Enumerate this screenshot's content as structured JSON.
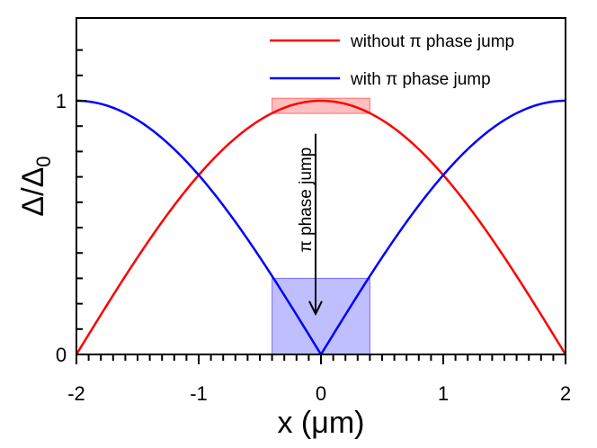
{
  "chart_data": {
    "type": "line",
    "title": "",
    "xlabel": "x (μm)",
    "ylabel": "Δ/Δ",
    "ylabel_subscript": "0",
    "xlim": [
      -2,
      2
    ],
    "ylim": [
      0,
      1.3
    ],
    "x_ticks": [
      -2,
      -1,
      0,
      1,
      2
    ],
    "x_tick_labels": [
      "-2",
      "-1",
      "0",
      "1",
      "2"
    ],
    "y_ticks": [
      0,
      1
    ],
    "y_tick_labels": [
      "0",
      "1"
    ],
    "grid": false,
    "legend_placement": "top-right",
    "series": [
      {
        "name": "without π phase jump",
        "color": "#ff0000",
        "x": [
          -2,
          -1.75,
          -1.5,
          -1.25,
          -1,
          -0.75,
          -0.5,
          -0.25,
          0,
          0.25,
          0.5,
          0.75,
          1,
          1.25,
          1.5,
          1.75,
          2
        ],
        "y": [
          0,
          0.195,
          0.383,
          0.556,
          0.707,
          0.831,
          0.924,
          0.981,
          1,
          0.981,
          0.924,
          0.831,
          0.707,
          0.556,
          0.383,
          0.195,
          0
        ]
      },
      {
        "name": "with π phase jump",
        "color": "#0000ff",
        "x": [
          -2,
          -1.75,
          -1.5,
          -1.25,
          -1,
          -0.75,
          -0.5,
          -0.25,
          0,
          0.25,
          0.5,
          0.75,
          1,
          1.25,
          1.5,
          1.75,
          2
        ],
        "y": [
          1,
          0.981,
          0.924,
          0.831,
          0.707,
          0.556,
          0.383,
          0.195,
          0,
          0.195,
          0.383,
          0.556,
          0.707,
          0.831,
          0.924,
          0.981,
          1
        ]
      }
    ],
    "highlight_boxes": [
      {
        "x": [
          -0.4,
          0.4
        ],
        "y": [
          0.95,
          1.01
        ],
        "color": "#ff0000"
      },
      {
        "x": [
          -0.4,
          0.4
        ],
        "y": [
          0,
          0.3
        ],
        "color": "#0000ff"
      }
    ],
    "annotation": {
      "text": "π phase jump",
      "arrow_from": [
        0,
        0.87
      ],
      "arrow_to": [
        0,
        0.16
      ]
    }
  }
}
